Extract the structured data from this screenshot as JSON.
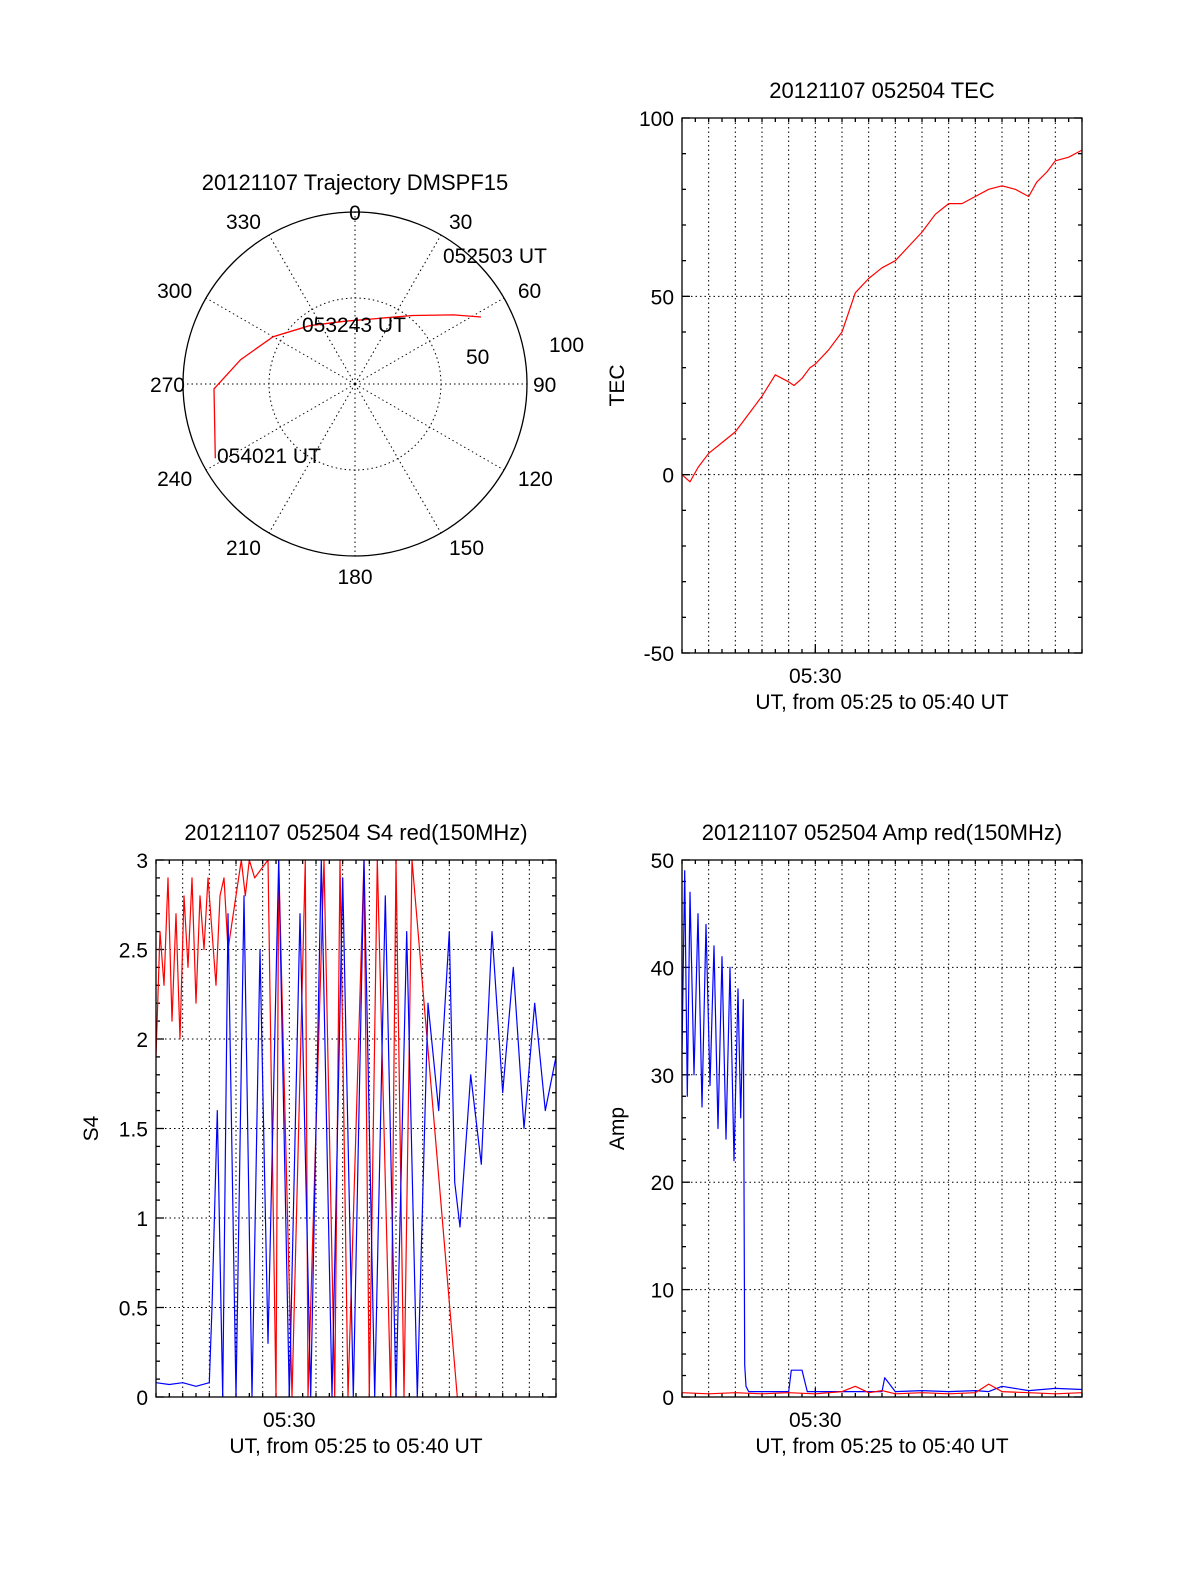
{
  "chart_data": [
    {
      "type": "polar",
      "title": "20121107 Trajectory DMSPF15",
      "angle_ticks": [
        "0",
        "30",
        "60",
        "90",
        "120",
        "150",
        "180",
        "210",
        "240",
        "270",
        "300",
        "330"
      ],
      "angle_values": [
        0,
        30,
        60,
        90,
        120,
        150,
        180,
        210,
        240,
        270,
        300,
        330
      ],
      "radial_ticks": [
        "50",
        "100"
      ],
      "radial_values": [
        50,
        100
      ],
      "radial_range": [
        0,
        100
      ],
      "grid": true,
      "series": [
        {
          "color": "#ff0000",
          "points": [
            {
              "az": 62,
              "el": 17
            },
            {
              "az": 55,
              "el": 30
            },
            {
              "az": 40,
              "el": 48
            },
            {
              "az": 18,
              "el": 60
            },
            {
              "az": 350,
              "el": 63
            },
            {
              "az": 322,
              "el": 57
            },
            {
              "az": 300,
              "el": 45
            },
            {
              "az": 282,
              "el": 32
            },
            {
              "az": 268,
              "el": 18
            },
            {
              "az": 242,
              "el": 8
            }
          ]
        }
      ],
      "annotations": [
        "052503 UT",
        "053243 UT",
        "054021 UT"
      ]
    },
    {
      "type": "line",
      "title": "20121107 052504 TEC",
      "xlabel": "UT, from 05:25 to 05:40 UT",
      "ylabel": "TEC",
      "x_ticks": [
        "05:30"
      ],
      "x_tick_values": [
        5
      ],
      "xlim": [
        0,
        15
      ],
      "ylim": [
        -50,
        100
      ],
      "y_ticks": [
        "-50",
        "0",
        "50",
        "100"
      ],
      "grid": true,
      "series": [
        {
          "color": "#ff0000",
          "x": [
            0,
            0.3,
            0.6,
            1,
            1.5,
            2,
            2.5,
            3,
            3.5,
            4,
            4.2,
            4.5,
            4.8,
            5,
            5.5,
            6,
            6.5,
            7,
            7.5,
            8,
            8.5,
            9,
            9.5,
            10,
            10.5,
            11,
            11.5,
            12,
            12.5,
            13,
            13.3,
            13.7,
            14,
            14.5,
            15
          ],
          "y": [
            0,
            -2,
            2,
            6,
            9,
            12,
            17,
            22,
            28,
            26,
            25,
            27,
            30,
            31,
            35,
            40,
            51,
            55,
            58,
            60,
            64,
            68,
            73,
            76,
            76,
            78,
            80,
            81,
            80,
            78,
            82,
            85,
            88,
            89,
            91
          ]
        }
      ]
    },
    {
      "type": "line",
      "title": "20121107 052504 S4 red(150MHz)",
      "xlabel": "UT, from 05:25 to 05:40 UT",
      "ylabel": "S4",
      "x_ticks": [
        "05:30"
      ],
      "x_tick_values": [
        5
      ],
      "xlim": [
        0,
        15
      ],
      "ylim": [
        0,
        3
      ],
      "y_ticks": [
        "0",
        "0.5",
        "1",
        "1.5",
        "2",
        "2.5",
        "3"
      ],
      "grid": true,
      "series": [
        {
          "color": "#ff0000",
          "x": [
            0,
            0.15,
            0.3,
            0.45,
            0.6,
            0.75,
            0.9,
            1.05,
            1.2,
            1.35,
            1.5,
            1.65,
            1.8,
            1.95,
            2.1,
            2.25,
            2.4,
            2.55,
            2.7,
            3.2,
            3.35,
            3.5,
            3.7,
            4.2,
            4.5,
            4.6,
            5.1,
            5.6,
            5.7,
            6.3,
            6.7,
            6.9,
            7.2,
            7.8,
            8.0,
            8.3,
            8.8,
            9.0,
            9.3,
            9.6,
            11.3,
            12.2
          ],
          "y": [
            1.9,
            2.6,
            2.3,
            2.9,
            2.1,
            2.7,
            2.0,
            2.8,
            2.4,
            2.9,
            2.2,
            2.8,
            2.5,
            2.9,
            2.6,
            2.3,
            2.8,
            2.9,
            2.5,
            3.0,
            2.8,
            3.0,
            2.9,
            3.0,
            0.0,
            3.0,
            0.0,
            3.0,
            0.0,
            3.0,
            0.0,
            3.0,
            0.0,
            3.0,
            0.0,
            3.0,
            0.0,
            3.0,
            0.0,
            3.0,
            0.0,
            0.0
          ]
        },
        {
          "color": "#0000ff",
          "x": [
            0,
            0.5,
            1.0,
            1.5,
            2.0,
            2.1,
            2.3,
            2.5,
            2.7,
            3.0,
            3.3,
            3.6,
            3.9,
            4.2,
            4.6,
            5.0,
            5.4,
            5.8,
            6.2,
            6.6,
            7.0,
            7.4,
            7.8,
            8.2,
            8.6,
            9.0,
            9.4,
            9.8,
            10.2,
            10.6,
            11.0,
            11.2,
            11.4,
            11.8,
            12.2,
            12.6,
            13.0,
            13.4,
            13.8,
            14.2,
            14.6,
            15
          ],
          "y": [
            0.08,
            0.07,
            0.08,
            0.06,
            0.08,
            0.5,
            1.6,
            0.0,
            2.7,
            0.0,
            2.8,
            0.0,
            2.5,
            0.3,
            3.0,
            0.0,
            2.7,
            0.0,
            3.0,
            0.0,
            2.9,
            0.0,
            3.0,
            0.0,
            2.8,
            0.0,
            2.6,
            0.0,
            2.2,
            1.6,
            2.6,
            1.2,
            0.95,
            1.8,
            1.3,
            2.6,
            1.7,
            2.4,
            1.5,
            2.2,
            1.6,
            1.9
          ]
        }
      ]
    },
    {
      "type": "line",
      "title": "20121107 052504 Amp red(150MHz)",
      "xlabel": "UT, from 05:25 to 05:40 UT",
      "ylabel": "Amp",
      "x_ticks": [
        "05:30"
      ],
      "x_tick_values": [
        5
      ],
      "xlim": [
        0,
        15
      ],
      "ylim": [
        0,
        50
      ],
      "y_ticks": [
        "0",
        "10",
        "20",
        "30",
        "40",
        "50"
      ],
      "grid": true,
      "series": [
        {
          "color": "#0000ff",
          "x": [
            0,
            0.1,
            0.2,
            0.3,
            0.45,
            0.6,
            0.75,
            0.9,
            1.05,
            1.2,
            1.35,
            1.5,
            1.65,
            1.8,
            1.95,
            2.1,
            2.2,
            2.3,
            2.35,
            2.4,
            2.5,
            3.0,
            4.0,
            4.1,
            4.5,
            4.7,
            5.0,
            6.0,
            7.0,
            7.5,
            7.6,
            8.0,
            9.0,
            10.0,
            11.0,
            11.5,
            12.0,
            13.0,
            14.0,
            15
          ],
          "y": [
            32,
            49,
            28,
            47,
            30,
            45,
            27,
            44,
            29,
            42,
            25,
            41,
            24,
            40,
            22,
            38,
            26,
            37,
            3,
            1,
            0.5,
            0.5,
            0.5,
            2.5,
            2.5,
            0.5,
            0.5,
            0.5,
            0.5,
            0.5,
            1.8,
            0.5,
            0.6,
            0.5,
            0.6,
            0.5,
            1.0,
            0.6,
            0.8,
            0.7
          ]
        },
        {
          "color": "#ff0000",
          "x": [
            0,
            1,
            2,
            3,
            4,
            5,
            6,
            6.5,
            7,
            7.5,
            8,
            9,
            10,
            11,
            11.5,
            12,
            13,
            14,
            15
          ],
          "y": [
            0.4,
            0.3,
            0.4,
            0.3,
            0.4,
            0.3,
            0.5,
            1.0,
            0.4,
            0.6,
            0.3,
            0.4,
            0.3,
            0.4,
            1.2,
            0.5,
            0.4,
            0.3,
            0.4
          ]
        }
      ]
    }
  ]
}
